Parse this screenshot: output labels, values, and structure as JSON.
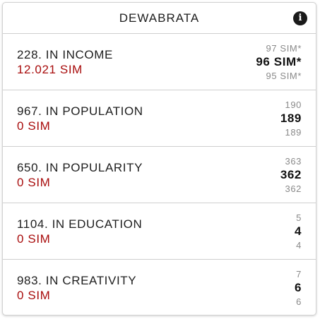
{
  "header": {
    "title": "DEWABRATA",
    "info_icon": "info-icon",
    "info_glyph": "i"
  },
  "colors": {
    "amount": "#a80c0c",
    "text": "#1e1e1e",
    "muted": "#8a8a8a"
  },
  "rows": [
    {
      "label": "228. IN INCOME",
      "amount": "12.021 SIM",
      "above": "97 SIM*",
      "current": "96 SIM*",
      "below": "95 SIM*"
    },
    {
      "label": "967. IN POPULATION",
      "amount": "0 SIM",
      "above": "190",
      "current": "189",
      "below": "189"
    },
    {
      "label": "650. IN POPULARITY",
      "amount": "0 SIM",
      "above": "363",
      "current": "362",
      "below": "362"
    },
    {
      "label": "1104. IN EDUCATION",
      "amount": "0 SIM",
      "above": "5",
      "current": "4",
      "below": "4"
    },
    {
      "label": "983. IN CREATIVITY",
      "amount": "0 SIM",
      "above": "7",
      "current": "6",
      "below": "6"
    }
  ]
}
